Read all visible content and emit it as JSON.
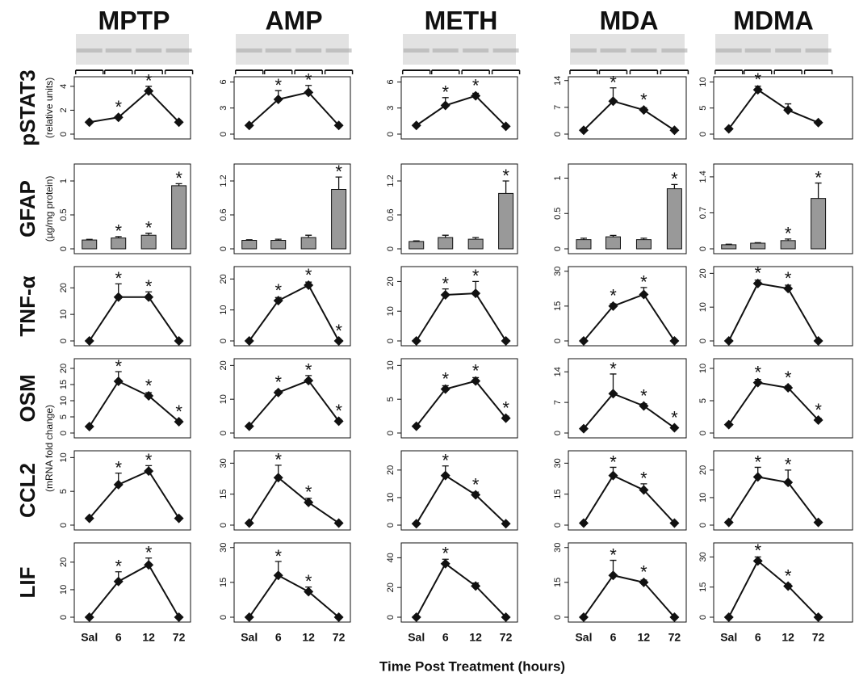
{
  "drugs": [
    "MPTP",
    "AMP",
    "METH",
    "MDA",
    "MDMA"
  ],
  "measures": [
    {
      "name": "pSTAT3",
      "unit": "(relative units)"
    },
    {
      "name": "GFAP",
      "unit": "(µg/mg protein)"
    },
    {
      "name": "TNF-α"
    },
    {
      "name": "OSM"
    },
    {
      "name": "CCL2"
    },
    {
      "name": "LIF"
    }
  ],
  "mrna_unit": "(mRNA fold change)",
  "categories": [
    "Sal",
    "6",
    "12",
    "72"
  ],
  "x_title": "Time Post Treatment (hours)",
  "chart_data": [
    {
      "type": "line",
      "values": [
        1,
        1.4,
        3.6,
        1
      ],
      "errors": [
        0,
        0.1,
        0.4,
        0
      ],
      "significance": [
        null,
        "*",
        "*",
        null
      ],
      "ylim": [
        0,
        4.8
      ],
      "yticks": [
        0,
        2,
        4
      ]
    },
    {
      "type": "line",
      "values": [
        1,
        4,
        4.8,
        1
      ],
      "errors": [
        0,
        1,
        0.8,
        0
      ],
      "significance": [
        null,
        "*",
        "*",
        null
      ],
      "ylim": [
        0,
        6.6
      ],
      "yticks": [
        0,
        3,
        6
      ]
    },
    {
      "type": "line",
      "values": [
        1,
        3.3,
        4.4,
        0.9
      ],
      "errors": [
        0,
        0.9,
        0.3,
        0.1
      ],
      "significance": [
        null,
        "*",
        "*",
        null
      ],
      "ylim": [
        0,
        6.6
      ],
      "yticks": [
        0,
        3,
        6
      ]
    },
    {
      "type": "line",
      "values": [
        1,
        8.6,
        6.3,
        1
      ],
      "errors": [
        0,
        3.5,
        0.6,
        0
      ],
      "significance": [
        null,
        "*",
        "*",
        null
      ],
      "ylim": [
        0,
        15
      ],
      "yticks": [
        0,
        7,
        14
      ]
    },
    {
      "type": "line",
      "values": [
        1,
        8.5,
        4.6,
        2.2
      ],
      "errors": [
        0,
        0.7,
        1.2,
        0.3
      ],
      "significance": [
        null,
        "*",
        null,
        null
      ],
      "ylim": [
        0,
        11
      ],
      "yticks": [
        0,
        5,
        10
      ]
    },
    {
      "type": "bar",
      "values": [
        0.13,
        0.16,
        0.2,
        0.93
      ],
      "errors": [
        0.01,
        0.02,
        0.03,
        0.03
      ],
      "significance": [
        null,
        "*",
        "*",
        "*"
      ],
      "ylim": [
        0,
        1.25
      ],
      "yticks": [
        0,
        0.5,
        1
      ]
    },
    {
      "type": "bar",
      "values": [
        0.15,
        0.15,
        0.2,
        1.05
      ],
      "errors": [
        0.01,
        0.02,
        0.04,
        0.22
      ],
      "significance": [
        null,
        null,
        null,
        "*"
      ],
      "ylim": [
        0,
        1.5
      ],
      "yticks": [
        0,
        0.6,
        1.2
      ]
    },
    {
      "type": "bar",
      "values": [
        0.13,
        0.2,
        0.17,
        0.98
      ],
      "errors": [
        0.01,
        0.04,
        0.03,
        0.22
      ],
      "significance": [
        null,
        null,
        null,
        "*"
      ],
      "ylim": [
        0,
        1.5
      ],
      "yticks": [
        0,
        0.6,
        1.2
      ]
    },
    {
      "type": "bar",
      "values": [
        0.13,
        0.17,
        0.13,
        0.85
      ],
      "errors": [
        0.02,
        0.02,
        0.02,
        0.06
      ],
      "significance": [
        null,
        null,
        null,
        "*"
      ],
      "ylim": [
        0,
        1.2
      ],
      "yticks": [
        0,
        0.5,
        1
      ]
    },
    {
      "type": "bar",
      "values": [
        0.08,
        0.11,
        0.16,
        0.98
      ],
      "errors": [
        0.01,
        0.01,
        0.03,
        0.3
      ],
      "significance": [
        null,
        null,
        "*",
        "*"
      ],
      "ylim": [
        0,
        1.65
      ],
      "yticks": [
        0,
        0.7,
        1.4
      ]
    },
    {
      "type": "line",
      "values": [
        0,
        16.5,
        16.5,
        0
      ],
      "errors": [
        0,
        5,
        2,
        0
      ],
      "significance": [
        null,
        "*",
        "*",
        null
      ],
      "ylim": [
        0,
        28
      ],
      "yticks": [
        0,
        10,
        20
      ]
    },
    {
      "type": "line",
      "values": [
        0,
        13,
        18,
        0
      ],
      "errors": [
        0,
        1,
        1,
        0
      ],
      "significance": [
        null,
        "*",
        "*",
        "*"
      ],
      "ylim": [
        0,
        24
      ],
      "yticks": [
        0,
        10,
        20
      ]
    },
    {
      "type": "line",
      "values": [
        0,
        15.5,
        16,
        0
      ],
      "errors": [
        0,
        2,
        4,
        0
      ],
      "significance": [
        null,
        "*",
        "*",
        null
      ],
      "ylim": [
        0,
        25
      ],
      "yticks": [
        0,
        10,
        20
      ]
    },
    {
      "type": "line",
      "values": [
        0,
        15,
        20,
        0
      ],
      "errors": [
        0,
        1,
        3,
        0
      ],
      "significance": [
        null,
        "*",
        "*",
        null
      ],
      "ylim": [
        0,
        32
      ],
      "yticks": [
        0,
        15,
        30
      ]
    },
    {
      "type": "line",
      "values": [
        0,
        17,
        15.5,
        0
      ],
      "errors": [
        0,
        1,
        1,
        0
      ],
      "significance": [
        null,
        "*",
        "*",
        null
      ],
      "ylim": [
        0,
        22
      ],
      "yticks": [
        0,
        10,
        20
      ]
    },
    {
      "type": "line",
      "values": [
        2,
        16,
        11.5,
        3.5
      ],
      "errors": [
        0,
        3,
        1,
        0.5
      ],
      "significance": [
        null,
        "*",
        "*",
        "*"
      ],
      "ylim": [
        0,
        23
      ],
      "yticks": [
        0,
        5,
        10,
        15,
        20
      ]
    },
    {
      "type": "line",
      "values": [
        2,
        12,
        15.5,
        3.5
      ],
      "errors": [
        0,
        0.5,
        1.5,
        0.5
      ],
      "significance": [
        null,
        "*",
        "*",
        "*"
      ],
      "ylim": [
        0,
        22
      ],
      "yticks": [
        0,
        10,
        20
      ]
    },
    {
      "type": "line",
      "values": [
        1,
        6.5,
        7.7,
        2.2
      ],
      "errors": [
        0,
        0.5,
        0.5,
        0.3
      ],
      "significance": [
        null,
        "*",
        "*",
        "*"
      ],
      "ylim": [
        0,
        11
      ],
      "yticks": [
        0,
        5,
        10
      ]
    },
    {
      "type": "line",
      "values": [
        1,
        9,
        6.2,
        1.2
      ],
      "errors": [
        0,
        4.5,
        0.5,
        0.2
      ],
      "significance": [
        null,
        "*",
        "*",
        "*"
      ],
      "ylim": [
        0,
        17
      ],
      "yticks": [
        0,
        7,
        14
      ]
    },
    {
      "type": "line",
      "values": [
        1.3,
        7.8,
        7,
        2
      ],
      "errors": [
        0,
        0.5,
        0.3,
        0.3
      ],
      "significance": [
        null,
        "*",
        "*",
        "*"
      ],
      "ylim": [
        0,
        11.5
      ],
      "yticks": [
        0,
        5,
        10
      ]
    },
    {
      "type": "line",
      "values": [
        1,
        6,
        8,
        1
      ],
      "errors": [
        0,
        1.7,
        0.8,
        0
      ],
      "significance": [
        null,
        "*",
        "*",
        null
      ],
      "ylim": [
        0,
        11
      ],
      "yticks": [
        0,
        5,
        10
      ]
    },
    {
      "type": "line",
      "values": [
        1,
        23,
        11,
        1
      ],
      "errors": [
        0,
        6,
        2,
        0
      ],
      "significance": [
        null,
        "*",
        "*",
        null
      ],
      "ylim": [
        0,
        36
      ],
      "yticks": [
        0,
        15,
        30
      ]
    },
    {
      "type": "line",
      "values": [
        0.5,
        18,
        11,
        0.5
      ],
      "errors": [
        0,
        3.5,
        1,
        0
      ],
      "significance": [
        null,
        "*",
        "*",
        null
      ],
      "ylim": [
        0,
        27
      ],
      "yticks": [
        0,
        10,
        20
      ]
    },
    {
      "type": "line",
      "values": [
        1,
        24,
        17,
        1
      ],
      "errors": [
        0,
        4,
        3,
        0
      ],
      "significance": [
        null,
        "*",
        "*",
        null
      ],
      "ylim": [
        0,
        36
      ],
      "yticks": [
        0,
        15,
        30
      ]
    },
    {
      "type": "line",
      "values": [
        1,
        17.5,
        15.5,
        1
      ],
      "errors": [
        0,
        3.5,
        4.5,
        0
      ],
      "significance": [
        null,
        "*",
        "*",
        null
      ],
      "ylim": [
        0,
        27
      ],
      "yticks": [
        0,
        10,
        20
      ]
    },
    {
      "type": "line",
      "values": [
        0,
        13,
        19,
        0
      ],
      "errors": [
        0,
        3.5,
        2.5,
        0
      ],
      "significance": [
        null,
        "*",
        "*",
        null
      ],
      "ylim": [
        0,
        27
      ],
      "yticks": [
        0,
        10,
        20
      ]
    },
    {
      "type": "line",
      "values": [
        0,
        18,
        11,
        0
      ],
      "errors": [
        0,
        6,
        2,
        0
      ],
      "significance": [
        null,
        "*",
        "*",
        null
      ],
      "ylim": [
        0,
        32
      ],
      "yticks": [
        0,
        15,
        30
      ]
    },
    {
      "type": "line",
      "values": [
        0,
        36,
        21,
        0
      ],
      "errors": [
        0,
        3,
        2,
        0
      ],
      "significance": [
        null,
        "*",
        null,
        null
      ],
      "ylim": [
        0,
        50
      ],
      "yticks": [
        0,
        20,
        40
      ]
    },
    {
      "type": "line",
      "values": [
        0,
        18,
        15,
        0
      ],
      "errors": [
        0,
        6.5,
        1,
        0
      ],
      "significance": [
        null,
        "*",
        "*",
        null
      ],
      "ylim": [
        0,
        32
      ],
      "yticks": [
        0,
        15,
        30
      ]
    },
    {
      "type": "line",
      "values": [
        0,
        28,
        15.5,
        0
      ],
      "errors": [
        0,
        2,
        1,
        0
      ],
      "significance": [
        null,
        "*",
        "*",
        null
      ],
      "ylim": [
        0,
        37
      ],
      "yticks": [
        0,
        15,
        30
      ]
    }
  ]
}
